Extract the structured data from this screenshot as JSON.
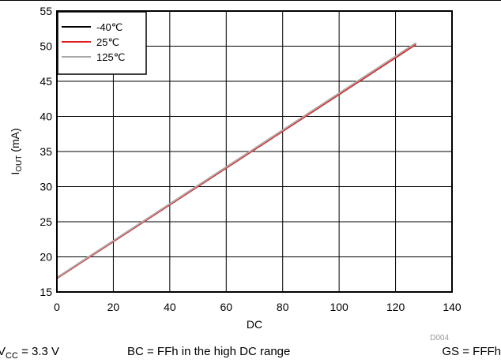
{
  "chart_data": {
    "type": "line",
    "title": "",
    "xlabel": "DC",
    "ylabel": {
      "main": "I",
      "sub": "OUT",
      "tail": " (mA)"
    },
    "xlim": [
      0,
      140
    ],
    "ylim": [
      15,
      55
    ],
    "xticks": [
      0,
      20,
      40,
      60,
      80,
      100,
      120,
      140
    ],
    "yticks": [
      15,
      20,
      25,
      30,
      35,
      40,
      45,
      50,
      55
    ],
    "grid": true,
    "legend_position": "top-left",
    "series": [
      {
        "name": "-40℃",
        "color": "#000000",
        "x": [
          0,
          127
        ],
        "y": [
          17.0,
          50.3
        ]
      },
      {
        "name": "25℃",
        "color": "#e31a1c",
        "x": [
          0,
          127
        ],
        "y": [
          16.95,
          50.2
        ]
      },
      {
        "name": "125℃",
        "color": "#a8a8a8",
        "x": [
          0,
          127
        ],
        "y": [
          17.05,
          50.4
        ]
      }
    ],
    "figure_id": "D004"
  },
  "conditions": {
    "vcc": {
      "main": "V",
      "sub": "CC",
      "tail": " = 3.3 V"
    },
    "bc": "BC = FFh in the high DC range",
    "gs": "GS = FFFh"
  }
}
